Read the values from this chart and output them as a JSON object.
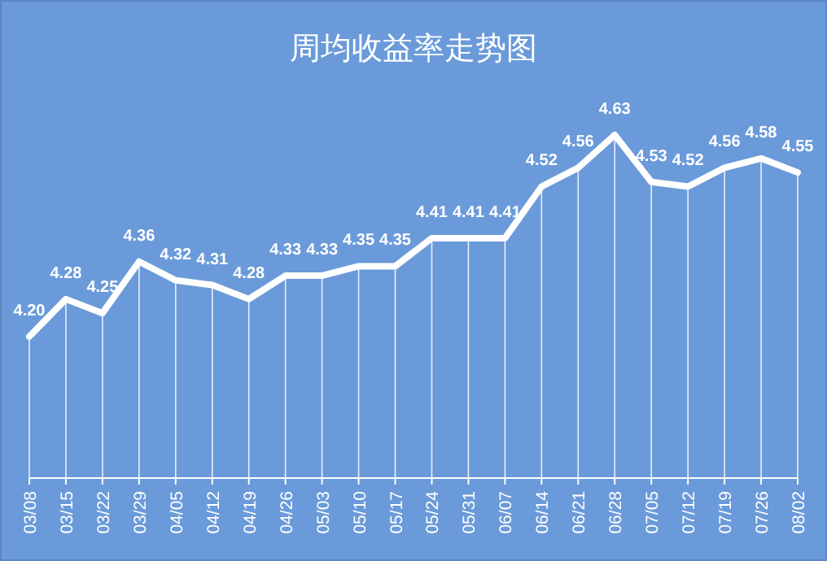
{
  "chart_data": {
    "type": "line",
    "title": "周均收益率走势图",
    "categories": [
      "03/08",
      "03/15",
      "03/22",
      "03/29",
      "04/05",
      "04/12",
      "04/19",
      "04/26",
      "05/03",
      "05/10",
      "05/17",
      "05/24",
      "05/31",
      "06/07",
      "06/14",
      "06/21",
      "06/28",
      "07/05",
      "07/12",
      "07/19",
      "07/26",
      "08/02"
    ],
    "series": [
      {
        "color": "#ffffff",
        "values": [
          4.2,
          4.28,
          4.25,
          4.36,
          4.32,
          4.31,
          4.28,
          4.33,
          4.33,
          4.35,
          4.35,
          4.41,
          4.41,
          4.41,
          4.52,
          4.56,
          4.63,
          4.53,
          4.52,
          4.56,
          4.58,
          4.55
        ],
        "value_labels": [
          "4.20",
          "4.28",
          "4.25",
          "4.36",
          "4.32",
          "4.31",
          "4.28",
          "4.33",
          "4.33",
          "4.35",
          "4.35",
          "4.41",
          "4.41",
          "4.41",
          "4.52",
          "4.56",
          "4.63",
          "4.53",
          "4.52",
          "4.56",
          "4.58",
          "4.55"
        ]
      }
    ],
    "tick_labels": "x",
    "grid": "x",
    "marker": "none",
    "line_style": "solid"
  }
}
